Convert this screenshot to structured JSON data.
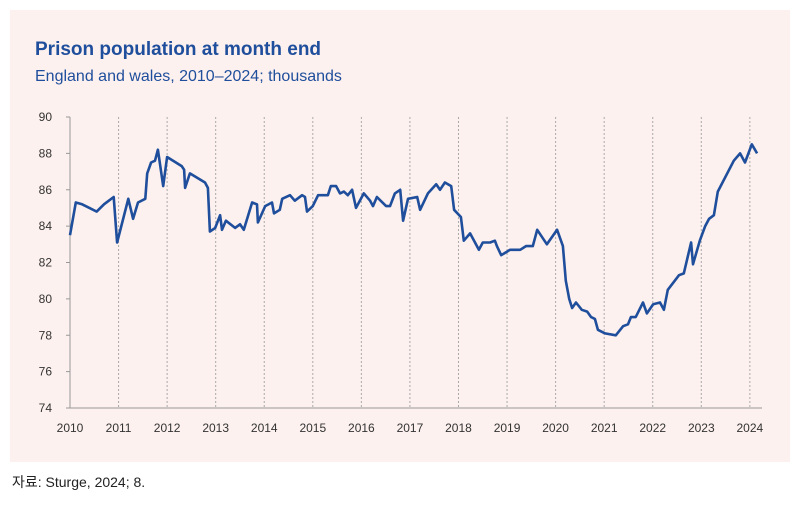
{
  "chart_data": {
    "type": "line",
    "title": "Prison population at month end",
    "subtitle": "England and wales, 2010–2024; thousands",
    "source": "자료: Sturge, 2024; 8.",
    "xlim": [
      2010,
      2024.25
    ],
    "xticks": [
      2010,
      2011,
      2012,
      2013,
      2014,
      2015,
      2016,
      2017,
      2018,
      2019,
      2020,
      2021,
      2022,
      2023,
      2024
    ],
    "ylim": [
      74,
      90
    ],
    "yticks": [
      74,
      76,
      78,
      80,
      82,
      84,
      86,
      88,
      90
    ],
    "grid": true,
    "series": [
      {
        "name": "Prison population",
        "color": "#1f4e9c",
        "x": [
          2010.0,
          2010.12,
          2010.25,
          2010.4,
          2010.55,
          2010.7,
          2010.8,
          2010.9,
          2010.97,
          2011.2,
          2011.3,
          2011.4,
          2011.55,
          2011.59,
          2011.67,
          2011.75,
          2011.81,
          2011.92,
          2012.0,
          2012.3,
          2012.35,
          2012.37,
          2012.47,
          2012.78,
          2012.84,
          2012.88,
          2012.99,
          2013.09,
          2013.13,
          2013.21,
          2013.4,
          2013.5,
          2013.58,
          2013.75,
          2013.85,
          2013.87,
          2014.02,
          2014.16,
          2014.2,
          2014.32,
          2014.37,
          2014.53,
          2014.63,
          2014.78,
          2014.84,
          2014.88,
          2015.0,
          2015.11,
          2015.31,
          2015.37,
          2015.48,
          2015.56,
          2015.64,
          2015.72,
          2015.81,
          2015.89,
          2016.05,
          2016.18,
          2016.24,
          2016.32,
          2016.51,
          2016.59,
          2016.69,
          2016.8,
          2016.86,
          2016.96,
          2017.15,
          2017.21,
          2017.37,
          2017.54,
          2017.62,
          2017.72,
          2017.85,
          2017.91,
          2018.05,
          2018.11,
          2018.24,
          2018.42,
          2018.5,
          2018.65,
          2018.75,
          2018.79,
          2018.88,
          2019.06,
          2019.27,
          2019.39,
          2019.53,
          2019.62,
          2019.82,
          2020.03,
          2020.15,
          2020.21,
          2020.28,
          2020.34,
          2020.42,
          2020.54,
          2020.65,
          2020.73,
          2020.81,
          2020.87,
          2021.02,
          2021.24,
          2021.39,
          2021.49,
          2021.55,
          2021.65,
          2021.8,
          2021.88,
          2022.01,
          2022.15,
          2022.23,
          2022.31,
          2022.54,
          2022.64,
          2022.79,
          2022.83,
          2022.97,
          2023.08,
          2023.16,
          2023.26,
          2023.34,
          2023.67,
          2023.8,
          2023.9,
          2024.04,
          2024.15
        ],
        "values": [
          83.5,
          85.3,
          85.2,
          85.0,
          84.8,
          85.2,
          85.4,
          85.6,
          83.1,
          85.5,
          84.4,
          85.3,
          85.5,
          86.9,
          87.5,
          87.6,
          88.2,
          86.2,
          87.8,
          87.3,
          87.1,
          86.1,
          86.9,
          86.4,
          86.1,
          83.7,
          83.9,
          84.6,
          83.8,
          84.3,
          83.9,
          84.1,
          83.8,
          85.3,
          85.2,
          84.2,
          85.1,
          85.3,
          84.7,
          84.9,
          85.5,
          85.7,
          85.4,
          85.7,
          85.6,
          84.8,
          85.1,
          85.7,
          85.7,
          86.2,
          86.2,
          85.8,
          85.9,
          85.7,
          86.0,
          85.0,
          85.8,
          85.4,
          85.1,
          85.6,
          85.1,
          85.1,
          85.8,
          86.0,
          84.3,
          85.5,
          85.6,
          84.9,
          85.8,
          86.3,
          86.0,
          86.4,
          86.2,
          84.9,
          84.5,
          83.2,
          83.6,
          82.7,
          83.1,
          83.1,
          83.2,
          82.9,
          82.4,
          82.7,
          82.7,
          82.9,
          82.9,
          83.8,
          83.0,
          83.8,
          82.9,
          81.0,
          80.0,
          79.5,
          79.8,
          79.4,
          79.3,
          79.0,
          78.9,
          78.3,
          78.1,
          78.0,
          78.5,
          78.6,
          79.0,
          79.0,
          79.8,
          79.2,
          79.7,
          79.8,
          79.4,
          80.5,
          81.3,
          81.4,
          83.1,
          81.9,
          83.2,
          84.0,
          84.4,
          84.6,
          85.9,
          87.6,
          88.0,
          87.5,
          88.5,
          88.0
        ]
      }
    ]
  }
}
